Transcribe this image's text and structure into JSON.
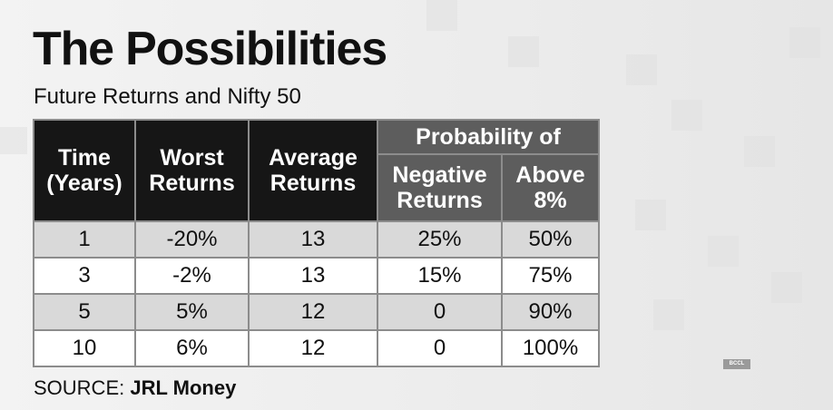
{
  "title": "The Possibilities",
  "subtitle": "Future Returns and Nifty 50",
  "table": {
    "headers": {
      "time": [
        "Time",
        "(Years)"
      ],
      "worst": [
        "Worst",
        "Returns"
      ],
      "average": [
        "Average",
        "Returns"
      ],
      "probability_group": "Probability of",
      "negative": [
        "Negative",
        "Returns"
      ],
      "above": [
        "Above",
        "8%"
      ]
    },
    "rows": [
      [
        "1",
        "-20%",
        "13",
        "25%",
        "50%"
      ],
      [
        "3",
        "-2%",
        "13",
        "15%",
        "75%"
      ],
      [
        "5",
        "5%",
        "12",
        "0",
        "90%"
      ],
      [
        "10",
        "6%",
        "12",
        "0",
        "100%"
      ]
    ]
  },
  "source": {
    "prefix": "SOURCE:",
    "name": "JRL Money"
  },
  "logo_text": "BCCL",
  "chart_data": {
    "type": "table",
    "title": "The Possibilities",
    "subtitle": "Future Returns and Nifty 50",
    "columns": [
      "Time (Years)",
      "Worst Returns",
      "Average Returns",
      "Probability of Negative Returns",
      "Probability of Above 8%"
    ],
    "rows": [
      [
        1,
        "-20%",
        13,
        "25%",
        "50%"
      ],
      [
        3,
        "-2%",
        13,
        "15%",
        "75%"
      ],
      [
        5,
        "5%",
        12,
        "0",
        "90%"
      ],
      [
        10,
        "6%",
        12,
        "0",
        "100%"
      ]
    ],
    "source": "JRL Money"
  }
}
